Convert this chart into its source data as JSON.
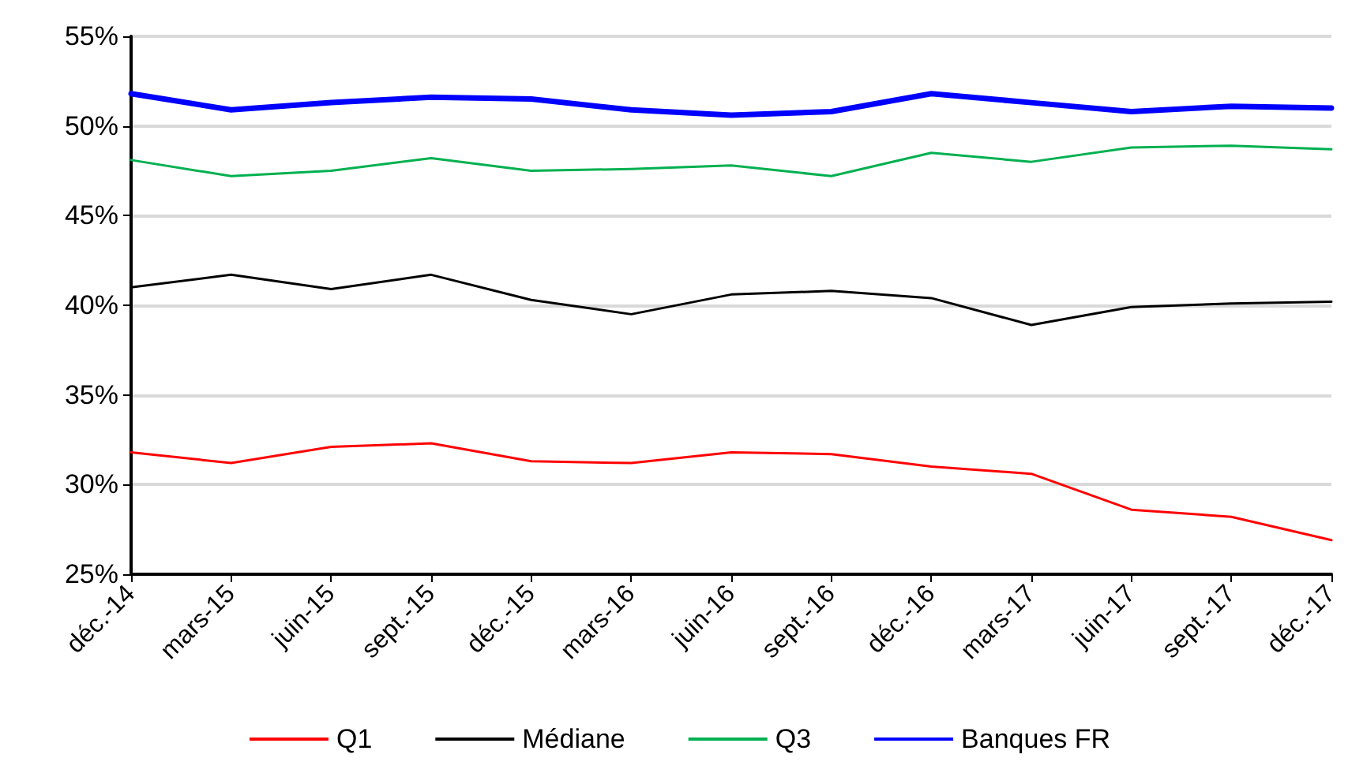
{
  "chart_data": {
    "type": "line",
    "categories": [
      "déc.-14",
      "mars-15",
      "juin-15",
      "sept.-15",
      "déc.-15",
      "mars-16",
      "juin-16",
      "sept.-16",
      "déc.-16",
      "mars-17",
      "juin-17",
      "sept.-17",
      "déc.-17"
    ],
    "series": [
      {
        "name": "Q1",
        "color": "#ff0000",
        "values": [
          31.8,
          31.2,
          32.1,
          32.3,
          31.3,
          31.2,
          31.8,
          31.7,
          31.0,
          30.6,
          28.6,
          28.2,
          26.9
        ]
      },
      {
        "name": "Médiane",
        "color": "#000000",
        "values": [
          41.0,
          41.7,
          40.9,
          41.7,
          40.3,
          39.5,
          40.6,
          40.8,
          40.4,
          38.9,
          39.9,
          40.1,
          40.2
        ]
      },
      {
        "name": "Q3",
        "color": "#00b050",
        "values": [
          48.1,
          47.2,
          47.5,
          48.2,
          47.5,
          47.6,
          47.8,
          47.2,
          48.5,
          48.0,
          48.8,
          48.9,
          48.7
        ]
      },
      {
        "name": "Banques FR",
        "color": "#0000ff",
        "values": [
          51.8,
          50.9,
          51.3,
          51.6,
          51.5,
          50.9,
          50.6,
          50.8,
          51.8,
          51.3,
          50.8,
          51.1,
          51.0
        ]
      }
    ],
    "ylim": [
      25,
      55
    ],
    "yticks": [
      {
        "value": 25,
        "label": "25%"
      },
      {
        "value": 30,
        "label": "30%"
      },
      {
        "value": 35,
        "label": "35%"
      },
      {
        "value": 40,
        "label": "40%"
      },
      {
        "value": 45,
        "label": "45%"
      },
      {
        "value": 50,
        "label": "50%"
      },
      {
        "value": 55,
        "label": "55%"
      }
    ],
    "grid": "y",
    "legend": "bottom",
    "marker": "none",
    "line_style": "solid"
  }
}
